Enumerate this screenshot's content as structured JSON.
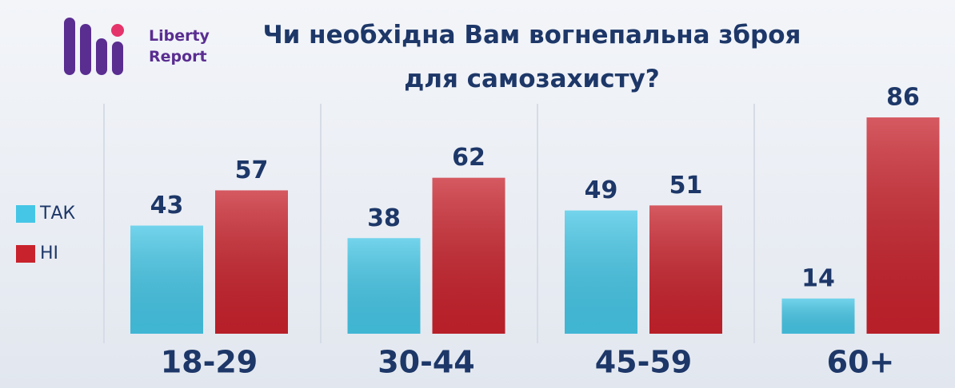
{
  "brand": "Liberty Report",
  "chart_data": {
    "type": "bar",
    "title": "Чи необхідна Вам вогнепальна зброя для самозахисту?",
    "categories": [
      "18-29",
      "30-44",
      "45-59",
      "60+"
    ],
    "series": [
      {
        "name": "ТАК",
        "color": "#45c6e6",
        "values": [
          43,
          38,
          49,
          14
        ]
      },
      {
        "name": "НІ",
        "color": "#c8222c",
        "values": [
          57,
          62,
          51,
          86
        ]
      }
    ],
    "legend": "left"
  }
}
